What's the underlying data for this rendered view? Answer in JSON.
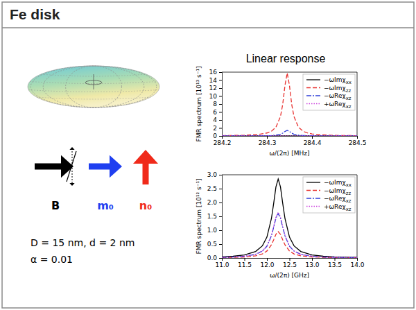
{
  "slide": {
    "title": "Fe disk",
    "panel_title": "Linear response",
    "vectors": [
      "B",
      "m₀",
      "n₀"
    ],
    "parameters": [
      "D = 15 nm, d = 2 nm",
      "α = 0.01"
    ]
  },
  "chart_data": [
    {
      "type": "line",
      "x_label": "ω/(2π) [MHz]",
      "y_label": "FMR spectrum [10¹³ s⁻¹]",
      "xlim": [
        284.2,
        284.5
      ],
      "xticks": [
        284.2,
        284.3,
        284.4,
        284.5
      ],
      "ylim": [
        0,
        16
      ],
      "yticks": [
        0,
        2,
        4,
        6,
        8,
        10,
        12,
        14,
        16
      ],
      "grid": false,
      "legend": "upper right",
      "x": [
        284.2,
        284.25,
        284.28,
        284.3,
        284.31,
        284.32,
        284.33,
        284.335,
        284.34,
        284.345,
        284.35,
        284.355,
        284.36,
        284.37,
        284.38,
        284.39,
        284.4,
        284.42,
        284.45,
        284.5
      ],
      "series": [
        {
          "name": "−ωImχxx",
          "color": "#000000",
          "line_style": "solid",
          "values": [
            0,
            0,
            0,
            0,
            0,
            0,
            0,
            0,
            0,
            0,
            0,
            0,
            0,
            0,
            0,
            0,
            0,
            0,
            0,
            0
          ]
        },
        {
          "name": "−ωImχzz",
          "color": "#e8312f",
          "line_style": "dashed",
          "values": [
            0.075,
            0.17,
            0.37,
            0.74,
            1.19,
            2.18,
            4.86,
            7.9,
            12.64,
            15.8,
            12.64,
            7.9,
            4.86,
            2.18,
            1.19,
            0.74,
            0.51,
            0.28,
            0.14,
            0.065
          ]
        },
        {
          "name": "−ωReχxz",
          "color": "#2f3fd8",
          "line_style": "dashdot",
          "values": [
            0.007,
            0.015,
            0.033,
            0.066,
            0.105,
            0.19,
            0.43,
            0.7,
            1.12,
            1.4,
            1.12,
            0.7,
            0.43,
            0.19,
            0.105,
            0.066,
            0.045,
            0.025,
            0.012,
            0.006
          ]
        },
        {
          "name": "+ωReχxz",
          "color": "#cc44dd",
          "line_style": "dotted",
          "values": [
            0,
            0,
            0,
            0,
            0,
            0,
            0,
            0,
            0,
            0,
            0,
            0,
            0,
            0,
            0,
            0,
            0,
            0,
            0,
            0
          ]
        }
      ]
    },
    {
      "type": "line",
      "x_label": "ω/(2π) [GHz]",
      "y_label": "FMR spectrum [10¹² s⁻¹]",
      "xlim": [
        11.0,
        14.0
      ],
      "xticks": [
        {
          "value": 11,
          "label": "11.0"
        },
        {
          "value": 11.5,
          "label": "11.5"
        },
        {
          "value": 12,
          "label": "12.0"
        },
        {
          "value": 12.5,
          "label": "12.5"
        },
        {
          "value": 13,
          "label": "13.0"
        },
        {
          "value": 13.5,
          "label": "13.5"
        },
        {
          "value": 14,
          "label": "14.0"
        }
      ],
      "ylim": [
        0,
        3.0
      ],
      "yticks": [
        {
          "value": 0,
          "label": "0.0"
        },
        {
          "value": 0.5,
          "label": "0.5"
        },
        {
          "value": 1,
          "label": "1.0"
        },
        {
          "value": 1.5,
          "label": "1.5"
        },
        {
          "value": 2,
          "label": "2.0"
        },
        {
          "value": 2.5,
          "label": "2.5"
        },
        {
          "value": 3,
          "label": "3.0"
        }
      ],
      "grid": false,
      "legend": "upper right",
      "x": [
        11.0,
        11.25,
        11.5,
        11.75,
        11.9,
        12.0,
        12.1,
        12.15,
        12.2,
        12.25,
        12.3,
        12.35,
        12.4,
        12.5,
        12.6,
        12.75,
        13.0,
        13.25,
        13.5,
        14.0
      ],
      "series": [
        {
          "name": "−ωImχxx",
          "color": "#000000",
          "line_style": "solid",
          "values": [
            0.04,
            0.063,
            0.11,
            0.235,
            0.44,
            0.755,
            1.425,
            1.97,
            2.565,
            2.85,
            2.565,
            1.97,
            1.425,
            0.755,
            0.44,
            0.235,
            0.11,
            0.063,
            0.04,
            0.021
          ]
        },
        {
          "name": "−ωImχzz",
          "color": "#e8312f",
          "line_style": "dashed",
          "values": [
            0.013,
            0.021,
            0.037,
            0.078,
            0.147,
            0.252,
            0.475,
            0.657,
            0.855,
            0.95,
            0.855,
            0.657,
            0.475,
            0.252,
            0.147,
            0.078,
            0.037,
            0.021,
            0.013,
            0.007
          ]
        },
        {
          "name": "−ωReχxz",
          "color": "#2f3fd8",
          "line_style": "dashdot",
          "values": [
            0.023,
            0.035,
            0.062,
            0.132,
            0.248,
            0.424,
            0.8,
            1.107,
            1.44,
            1.6,
            1.44,
            1.107,
            0.8,
            0.424,
            0.248,
            0.132,
            0.062,
            0.035,
            0.023,
            0.012
          ]
        },
        {
          "name": "+ωReχxz",
          "color": "#cc44dd",
          "line_style": "dotted",
          "values": [
            0.023,
            0.036,
            0.064,
            0.136,
            0.256,
            0.437,
            0.825,
            1.142,
            1.485,
            1.65,
            1.485,
            1.142,
            0.825,
            0.437,
            0.256,
            0.136,
            0.064,
            0.036,
            0.023,
            0.012
          ]
        }
      ]
    }
  ]
}
